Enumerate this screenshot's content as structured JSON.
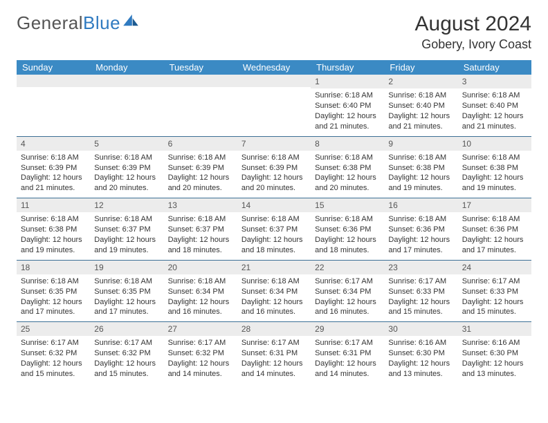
{
  "logo": {
    "text1": "General",
    "text2": "Blue"
  },
  "title": "August 2024",
  "location": "Gobery, Ivory Coast",
  "day_header_bg": "#3b8ac4",
  "day_header_fg": "#ffffff",
  "date_row_bg": "#ececec",
  "week_border": "#3b6f95",
  "days": [
    "Sunday",
    "Monday",
    "Tuesday",
    "Wednesday",
    "Thursday",
    "Friday",
    "Saturday"
  ],
  "weeks": [
    [
      {
        "date": "",
        "lines": []
      },
      {
        "date": "",
        "lines": []
      },
      {
        "date": "",
        "lines": []
      },
      {
        "date": "",
        "lines": []
      },
      {
        "date": "1",
        "lines": [
          "Sunrise: 6:18 AM",
          "Sunset: 6:40 PM",
          "Daylight: 12 hours and 21 minutes."
        ]
      },
      {
        "date": "2",
        "lines": [
          "Sunrise: 6:18 AM",
          "Sunset: 6:40 PM",
          "Daylight: 12 hours and 21 minutes."
        ]
      },
      {
        "date": "3",
        "lines": [
          "Sunrise: 6:18 AM",
          "Sunset: 6:40 PM",
          "Daylight: 12 hours and 21 minutes."
        ]
      }
    ],
    [
      {
        "date": "4",
        "lines": [
          "Sunrise: 6:18 AM",
          "Sunset: 6:39 PM",
          "Daylight: 12 hours and 21 minutes."
        ]
      },
      {
        "date": "5",
        "lines": [
          "Sunrise: 6:18 AM",
          "Sunset: 6:39 PM",
          "Daylight: 12 hours and 20 minutes."
        ]
      },
      {
        "date": "6",
        "lines": [
          "Sunrise: 6:18 AM",
          "Sunset: 6:39 PM",
          "Daylight: 12 hours and 20 minutes."
        ]
      },
      {
        "date": "7",
        "lines": [
          "Sunrise: 6:18 AM",
          "Sunset: 6:39 PM",
          "Daylight: 12 hours and 20 minutes."
        ]
      },
      {
        "date": "8",
        "lines": [
          "Sunrise: 6:18 AM",
          "Sunset: 6:38 PM",
          "Daylight: 12 hours and 20 minutes."
        ]
      },
      {
        "date": "9",
        "lines": [
          "Sunrise: 6:18 AM",
          "Sunset: 6:38 PM",
          "Daylight: 12 hours and 19 minutes."
        ]
      },
      {
        "date": "10",
        "lines": [
          "Sunrise: 6:18 AM",
          "Sunset: 6:38 PM",
          "Daylight: 12 hours and 19 minutes."
        ]
      }
    ],
    [
      {
        "date": "11",
        "lines": [
          "Sunrise: 6:18 AM",
          "Sunset: 6:38 PM",
          "Daylight: 12 hours and 19 minutes."
        ]
      },
      {
        "date": "12",
        "lines": [
          "Sunrise: 6:18 AM",
          "Sunset: 6:37 PM",
          "Daylight: 12 hours and 19 minutes."
        ]
      },
      {
        "date": "13",
        "lines": [
          "Sunrise: 6:18 AM",
          "Sunset: 6:37 PM",
          "Daylight: 12 hours and 18 minutes."
        ]
      },
      {
        "date": "14",
        "lines": [
          "Sunrise: 6:18 AM",
          "Sunset: 6:37 PM",
          "Daylight: 12 hours and 18 minutes."
        ]
      },
      {
        "date": "15",
        "lines": [
          "Sunrise: 6:18 AM",
          "Sunset: 6:36 PM",
          "Daylight: 12 hours and 18 minutes."
        ]
      },
      {
        "date": "16",
        "lines": [
          "Sunrise: 6:18 AM",
          "Sunset: 6:36 PM",
          "Daylight: 12 hours and 17 minutes."
        ]
      },
      {
        "date": "17",
        "lines": [
          "Sunrise: 6:18 AM",
          "Sunset: 6:36 PM",
          "Daylight: 12 hours and 17 minutes."
        ]
      }
    ],
    [
      {
        "date": "18",
        "lines": [
          "Sunrise: 6:18 AM",
          "Sunset: 6:35 PM",
          "Daylight: 12 hours and 17 minutes."
        ]
      },
      {
        "date": "19",
        "lines": [
          "Sunrise: 6:18 AM",
          "Sunset: 6:35 PM",
          "Daylight: 12 hours and 17 minutes."
        ]
      },
      {
        "date": "20",
        "lines": [
          "Sunrise: 6:18 AM",
          "Sunset: 6:34 PM",
          "Daylight: 12 hours and 16 minutes."
        ]
      },
      {
        "date": "21",
        "lines": [
          "Sunrise: 6:18 AM",
          "Sunset: 6:34 PM",
          "Daylight: 12 hours and 16 minutes."
        ]
      },
      {
        "date": "22",
        "lines": [
          "Sunrise: 6:17 AM",
          "Sunset: 6:34 PM",
          "Daylight: 12 hours and 16 minutes."
        ]
      },
      {
        "date": "23",
        "lines": [
          "Sunrise: 6:17 AM",
          "Sunset: 6:33 PM",
          "Daylight: 12 hours and 15 minutes."
        ]
      },
      {
        "date": "24",
        "lines": [
          "Sunrise: 6:17 AM",
          "Sunset: 6:33 PM",
          "Daylight: 12 hours and 15 minutes."
        ]
      }
    ],
    [
      {
        "date": "25",
        "lines": [
          "Sunrise: 6:17 AM",
          "Sunset: 6:32 PM",
          "Daylight: 12 hours and 15 minutes."
        ]
      },
      {
        "date": "26",
        "lines": [
          "Sunrise: 6:17 AM",
          "Sunset: 6:32 PM",
          "Daylight: 12 hours and 15 minutes."
        ]
      },
      {
        "date": "27",
        "lines": [
          "Sunrise: 6:17 AM",
          "Sunset: 6:32 PM",
          "Daylight: 12 hours and 14 minutes."
        ]
      },
      {
        "date": "28",
        "lines": [
          "Sunrise: 6:17 AM",
          "Sunset: 6:31 PM",
          "Daylight: 12 hours and 14 minutes."
        ]
      },
      {
        "date": "29",
        "lines": [
          "Sunrise: 6:17 AM",
          "Sunset: 6:31 PM",
          "Daylight: 12 hours and 14 minutes."
        ]
      },
      {
        "date": "30",
        "lines": [
          "Sunrise: 6:16 AM",
          "Sunset: 6:30 PM",
          "Daylight: 12 hours and 13 minutes."
        ]
      },
      {
        "date": "31",
        "lines": [
          "Sunrise: 6:16 AM",
          "Sunset: 6:30 PM",
          "Daylight: 12 hours and 13 minutes."
        ]
      }
    ]
  ]
}
